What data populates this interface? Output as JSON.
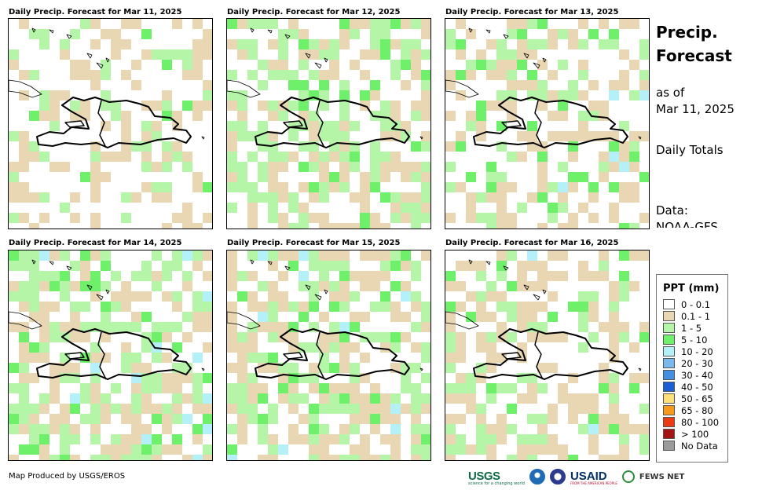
{
  "panels": [
    {
      "title": "Daily Precip. Forecast for Mar 11, 2025"
    },
    {
      "title": "Daily Precip. Forecast for Mar 12, 2025"
    },
    {
      "title": "Daily Precip. Forecast for Mar 13, 2025"
    },
    {
      "title": "Daily Precip. Forecast for Mar 14, 2025"
    },
    {
      "title": "Daily Precip. Forecast for Mar 15, 2025"
    },
    {
      "title": "Daily Precip. Forecast for Mar 16, 2025"
    }
  ],
  "info": {
    "title": "Precip. Forecast",
    "as_of_label": "as of",
    "as_of_date": "Mar 11, 2025",
    "totals": "Daily Totals",
    "data_label": "Data:",
    "data_source": "NOAA-GFS"
  },
  "legend": {
    "title": "PPT (mm)",
    "items": [
      {
        "label": "0 - 0.1",
        "color": "#ffffff"
      },
      {
        "label": "0.1 - 1",
        "color": "#e9d6b3"
      },
      {
        "label": "1 - 5",
        "color": "#b4f5a8"
      },
      {
        "label": "5 - 10",
        "color": "#6ef06b"
      },
      {
        "label": "10 - 20",
        "color": "#b3f0f7"
      },
      {
        "label": "20 - 30",
        "color": "#79b9ee"
      },
      {
        "label": "30 - 40",
        "color": "#4390e2"
      },
      {
        "label": "40 - 50",
        "color": "#1a5fd6"
      },
      {
        "label": "50 - 65",
        "color": "#fce07a"
      },
      {
        "label": "65 - 80",
        "color": "#f59a1c"
      },
      {
        "label": "80 - 100",
        "color": "#ee3a12"
      },
      {
        "label": "> 100",
        "color": "#a31414"
      },
      {
        "label": "No Data",
        "color": "#9a9a9a"
      }
    ]
  },
  "credit": "Map Produced by USGS/EROS",
  "logos": {
    "usgs": "USGS",
    "usgs_tagline": "science for a changing world",
    "usaid": "USAID",
    "usaid_tagline": "FROM THE AMERICAN PEOPLE",
    "fews": "FEWS NET"
  }
}
